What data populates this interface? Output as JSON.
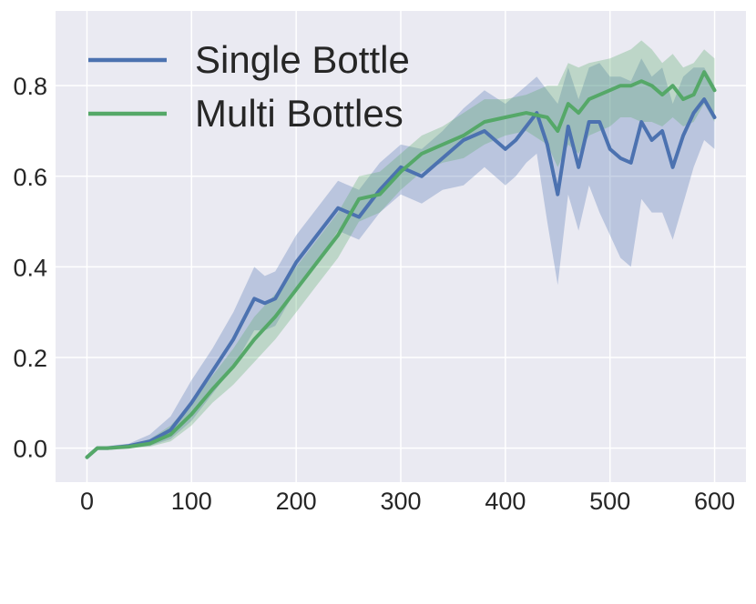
{
  "chart_data": {
    "type": "line",
    "title": "",
    "xlabel": "",
    "ylabel": "",
    "xlim": [
      -30,
      630
    ],
    "ylim": [
      -0.075,
      0.965
    ],
    "x_ticks": [
      0,
      100,
      200,
      300,
      400,
      500,
      600
    ],
    "y_ticks": [
      0.0,
      0.2,
      0.4,
      0.6,
      0.8
    ],
    "x_tick_labels": [
      "0",
      "100",
      "200",
      "300",
      "400",
      "500",
      "600"
    ],
    "y_tick_labels": [
      "0.0",
      "0.2",
      "0.4",
      "0.6",
      "0.8"
    ],
    "grid": true,
    "legend": {
      "placement": "top-left"
    },
    "background": "#eaeaf2",
    "series": [
      {
        "name": "Single Bottle",
        "color": "#4c72b0",
        "x": [
          0,
          10,
          20,
          40,
          60,
          80,
          100,
          120,
          140,
          160,
          170,
          180,
          200,
          220,
          240,
          260,
          280,
          300,
          320,
          340,
          360,
          380,
          400,
          410,
          420,
          430,
          440,
          450,
          460,
          470,
          480,
          490,
          500,
          510,
          520,
          530,
          540,
          550,
          560,
          570,
          580,
          590,
          600
        ],
        "values": [
          -0.02,
          0.0,
          0.0,
          0.005,
          0.015,
          0.04,
          0.1,
          0.17,
          0.24,
          0.33,
          0.32,
          0.33,
          0.41,
          0.47,
          0.53,
          0.51,
          0.57,
          0.62,
          0.6,
          0.64,
          0.68,
          0.7,
          0.66,
          0.68,
          0.71,
          0.74,
          0.67,
          0.56,
          0.71,
          0.62,
          0.72,
          0.72,
          0.66,
          0.64,
          0.63,
          0.72,
          0.68,
          0.7,
          0.62,
          0.69,
          0.74,
          0.77,
          0.73
        ],
        "lower": [
          -0.02,
          0.0,
          0.0,
          0.0,
          0.005,
          0.02,
          0.06,
          0.12,
          0.18,
          0.26,
          0.26,
          0.27,
          0.35,
          0.41,
          0.48,
          0.46,
          0.52,
          0.56,
          0.54,
          0.57,
          0.58,
          0.62,
          0.58,
          0.6,
          0.63,
          0.65,
          0.5,
          0.36,
          0.56,
          0.48,
          0.58,
          0.52,
          0.47,
          0.42,
          0.4,
          0.55,
          0.52,
          0.52,
          0.46,
          0.54,
          0.62,
          0.68,
          0.66
        ],
        "upper": [
          -0.02,
          0.0,
          0.005,
          0.01,
          0.03,
          0.07,
          0.15,
          0.22,
          0.3,
          0.4,
          0.38,
          0.39,
          0.47,
          0.53,
          0.59,
          0.57,
          0.63,
          0.67,
          0.66,
          0.7,
          0.75,
          0.79,
          0.76,
          0.78,
          0.8,
          0.82,
          0.79,
          0.76,
          0.84,
          0.77,
          0.84,
          0.85,
          0.82,
          0.82,
          0.81,
          0.86,
          0.82,
          0.84,
          0.76,
          0.82,
          0.84,
          0.84,
          0.8
        ]
      },
      {
        "name": "Multi Bottles",
        "color": "#55a868",
        "x": [
          0,
          10,
          20,
          40,
          60,
          80,
          100,
          120,
          140,
          160,
          180,
          200,
          220,
          240,
          260,
          280,
          300,
          320,
          340,
          360,
          380,
          400,
          420,
          440,
          450,
          460,
          470,
          480,
          500,
          510,
          520,
          530,
          540,
          550,
          560,
          570,
          580,
          590,
          600
        ],
        "values": [
          -0.02,
          0.0,
          0.0,
          0.003,
          0.01,
          0.03,
          0.075,
          0.13,
          0.18,
          0.24,
          0.29,
          0.35,
          0.41,
          0.47,
          0.55,
          0.56,
          0.61,
          0.65,
          0.67,
          0.69,
          0.72,
          0.73,
          0.74,
          0.73,
          0.7,
          0.76,
          0.74,
          0.77,
          0.79,
          0.8,
          0.8,
          0.81,
          0.8,
          0.78,
          0.8,
          0.77,
          0.78,
          0.83,
          0.79
        ],
        "lower": [
          -0.02,
          0.0,
          0.0,
          0.0,
          0.003,
          0.015,
          0.05,
          0.1,
          0.14,
          0.19,
          0.24,
          0.3,
          0.36,
          0.42,
          0.5,
          0.52,
          0.57,
          0.61,
          0.63,
          0.64,
          0.67,
          0.69,
          0.7,
          0.67,
          0.62,
          0.67,
          0.65,
          0.69,
          0.71,
          0.73,
          0.73,
          0.72,
          0.72,
          0.71,
          0.73,
          0.71,
          0.72,
          0.76,
          0.72
        ],
        "upper": [
          -0.02,
          0.0,
          0.003,
          0.008,
          0.02,
          0.05,
          0.1,
          0.16,
          0.22,
          0.29,
          0.34,
          0.4,
          0.46,
          0.52,
          0.6,
          0.61,
          0.65,
          0.69,
          0.71,
          0.74,
          0.77,
          0.77,
          0.78,
          0.8,
          0.8,
          0.85,
          0.84,
          0.85,
          0.86,
          0.87,
          0.88,
          0.9,
          0.88,
          0.85,
          0.87,
          0.84,
          0.85,
          0.88,
          0.86
        ]
      }
    ]
  }
}
